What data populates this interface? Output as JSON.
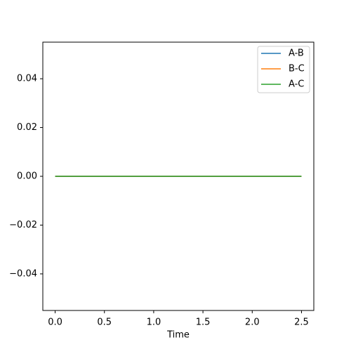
{
  "chart_data": {
    "type": "line",
    "xlabel": "Time",
    "x": [
      0,
      0.5,
      1.0,
      1.5,
      2.0,
      2.5
    ],
    "series": [
      {
        "name": "A-B",
        "color": "#1f77b4",
        "values": [
          0,
          0,
          0,
          0,
          0,
          0
        ]
      },
      {
        "name": "B-C",
        "color": "#ff7f0e",
        "values": [
          0,
          0,
          0,
          0,
          0,
          0
        ]
      },
      {
        "name": "A-C",
        "color": "#2ca02c",
        "values": [
          0,
          0,
          0,
          0,
          0,
          0
        ]
      }
    ],
    "xlim": [
      -0.125,
      2.625
    ],
    "xticks": [
      {
        "value": 0,
        "label": "0.0"
      },
      {
        "value": 0.5,
        "label": "0.5"
      },
      {
        "value": 1,
        "label": "1.0"
      },
      {
        "value": 1.5,
        "label": "1.5"
      },
      {
        "value": 2,
        "label": "2.0"
      },
      {
        "value": 2.5,
        "label": "2.5"
      }
    ],
    "ylim": [
      -0.055,
      0.055
    ],
    "yticks": [
      {
        "value": -0.04,
        "label": "−0.04"
      },
      {
        "value": -0.02,
        "label": "−0.02"
      },
      {
        "value": 0,
        "label": "0.00"
      },
      {
        "value": 0.02,
        "label": "0.02"
      },
      {
        "value": 0.04,
        "label": "0.04"
      }
    ],
    "legend": "upper right"
  }
}
